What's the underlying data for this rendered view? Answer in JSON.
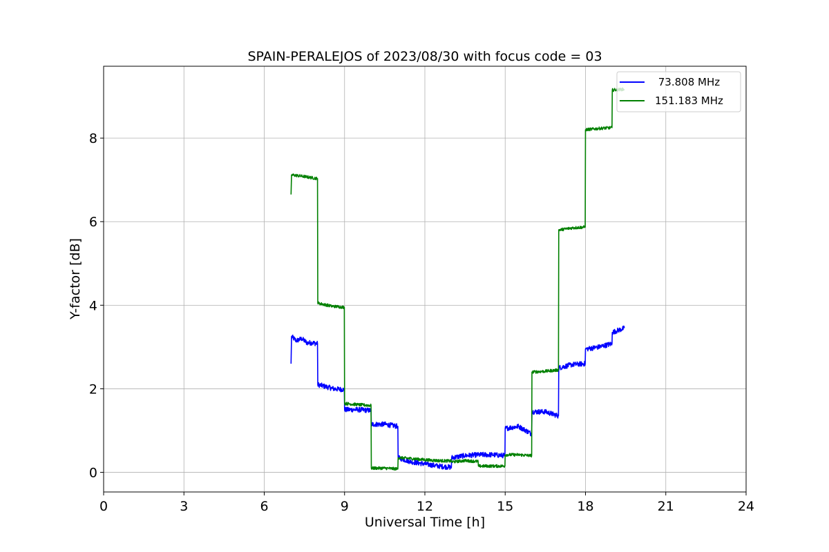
{
  "chart_data": {
    "type": "line",
    "title": "SPAIN-PERALEJOS of 2023/08/30 with focus code = 03",
    "xlabel": "Universal Time [h]",
    "ylabel": "Y-factor [dB]",
    "xlim": [
      0,
      24
    ],
    "ylim": [
      -0.47,
      9.72
    ],
    "xticks": [
      0,
      3,
      6,
      9,
      12,
      15,
      18,
      21,
      24
    ],
    "yticks": [
      0,
      2,
      4,
      6,
      8
    ],
    "grid": true,
    "legend_position": "top-right",
    "series": [
      {
        "name": " 73.808 MHz",
        "color": "#0000ff",
        "noise": 0.06,
        "points": [
          [
            7.0,
            2.6
          ],
          [
            7.02,
            3.25
          ],
          [
            7.2,
            3.15
          ],
          [
            7.4,
            3.2
          ],
          [
            7.6,
            3.1
          ],
          [
            7.8,
            3.1
          ],
          [
            7.99,
            3.08
          ],
          [
            8.0,
            2.1
          ],
          [
            8.3,
            2.05
          ],
          [
            8.6,
            2.0
          ],
          [
            8.99,
            1.98
          ],
          [
            9.0,
            1.5
          ],
          [
            9.5,
            1.5
          ],
          [
            9.99,
            1.48
          ],
          [
            10.0,
            1.15
          ],
          [
            10.5,
            1.15
          ],
          [
            10.99,
            1.1
          ],
          [
            11.0,
            0.35
          ],
          [
            11.5,
            0.25
          ],
          [
            12.0,
            0.2
          ],
          [
            12.5,
            0.15
          ],
          [
            12.99,
            0.12
          ],
          [
            13.0,
            0.35
          ],
          [
            13.5,
            0.4
          ],
          [
            14.0,
            0.42
          ],
          [
            14.5,
            0.42
          ],
          [
            14.99,
            0.4
          ],
          [
            15.0,
            1.05
          ],
          [
            15.5,
            1.1
          ],
          [
            15.99,
            0.92
          ],
          [
            16.0,
            1.45
          ],
          [
            16.5,
            1.45
          ],
          [
            16.99,
            1.35
          ],
          [
            17.0,
            2.5
          ],
          [
            17.5,
            2.58
          ],
          [
            17.99,
            2.6
          ],
          [
            18.0,
            2.95
          ],
          [
            18.5,
            3.0
          ],
          [
            18.99,
            3.08
          ],
          [
            19.0,
            3.35
          ],
          [
            19.45,
            3.45
          ]
        ]
      },
      {
        "name": "151.183 MHz",
        "color": "#008000",
        "noise": 0.035,
        "points": [
          [
            7.0,
            6.65
          ],
          [
            7.02,
            7.12
          ],
          [
            7.5,
            7.08
          ],
          [
            7.99,
            7.03
          ],
          [
            8.0,
            4.05
          ],
          [
            8.5,
            3.98
          ],
          [
            8.99,
            3.95
          ],
          [
            9.0,
            1.65
          ],
          [
            9.5,
            1.62
          ],
          [
            9.99,
            1.6
          ],
          [
            10.0,
            0.1
          ],
          [
            10.5,
            0.1
          ],
          [
            10.99,
            0.08
          ],
          [
            11.0,
            0.35
          ],
          [
            11.5,
            0.33
          ],
          [
            12.0,
            0.3
          ],
          [
            12.5,
            0.28
          ],
          [
            12.99,
            0.27
          ],
          [
            13.0,
            0.25
          ],
          [
            13.5,
            0.28
          ],
          [
            13.99,
            0.26
          ],
          [
            14.0,
            0.15
          ],
          [
            14.5,
            0.15
          ],
          [
            14.99,
            0.15
          ],
          [
            15.0,
            0.42
          ],
          [
            15.5,
            0.42
          ],
          [
            15.99,
            0.4
          ],
          [
            16.0,
            2.4
          ],
          [
            16.5,
            2.42
          ],
          [
            16.99,
            2.45
          ],
          [
            17.0,
            5.8
          ],
          [
            17.5,
            5.85
          ],
          [
            17.99,
            5.87
          ],
          [
            18.0,
            8.2
          ],
          [
            18.5,
            8.23
          ],
          [
            18.99,
            8.25
          ],
          [
            19.0,
            9.15
          ],
          [
            19.45,
            9.17
          ]
        ]
      }
    ]
  }
}
